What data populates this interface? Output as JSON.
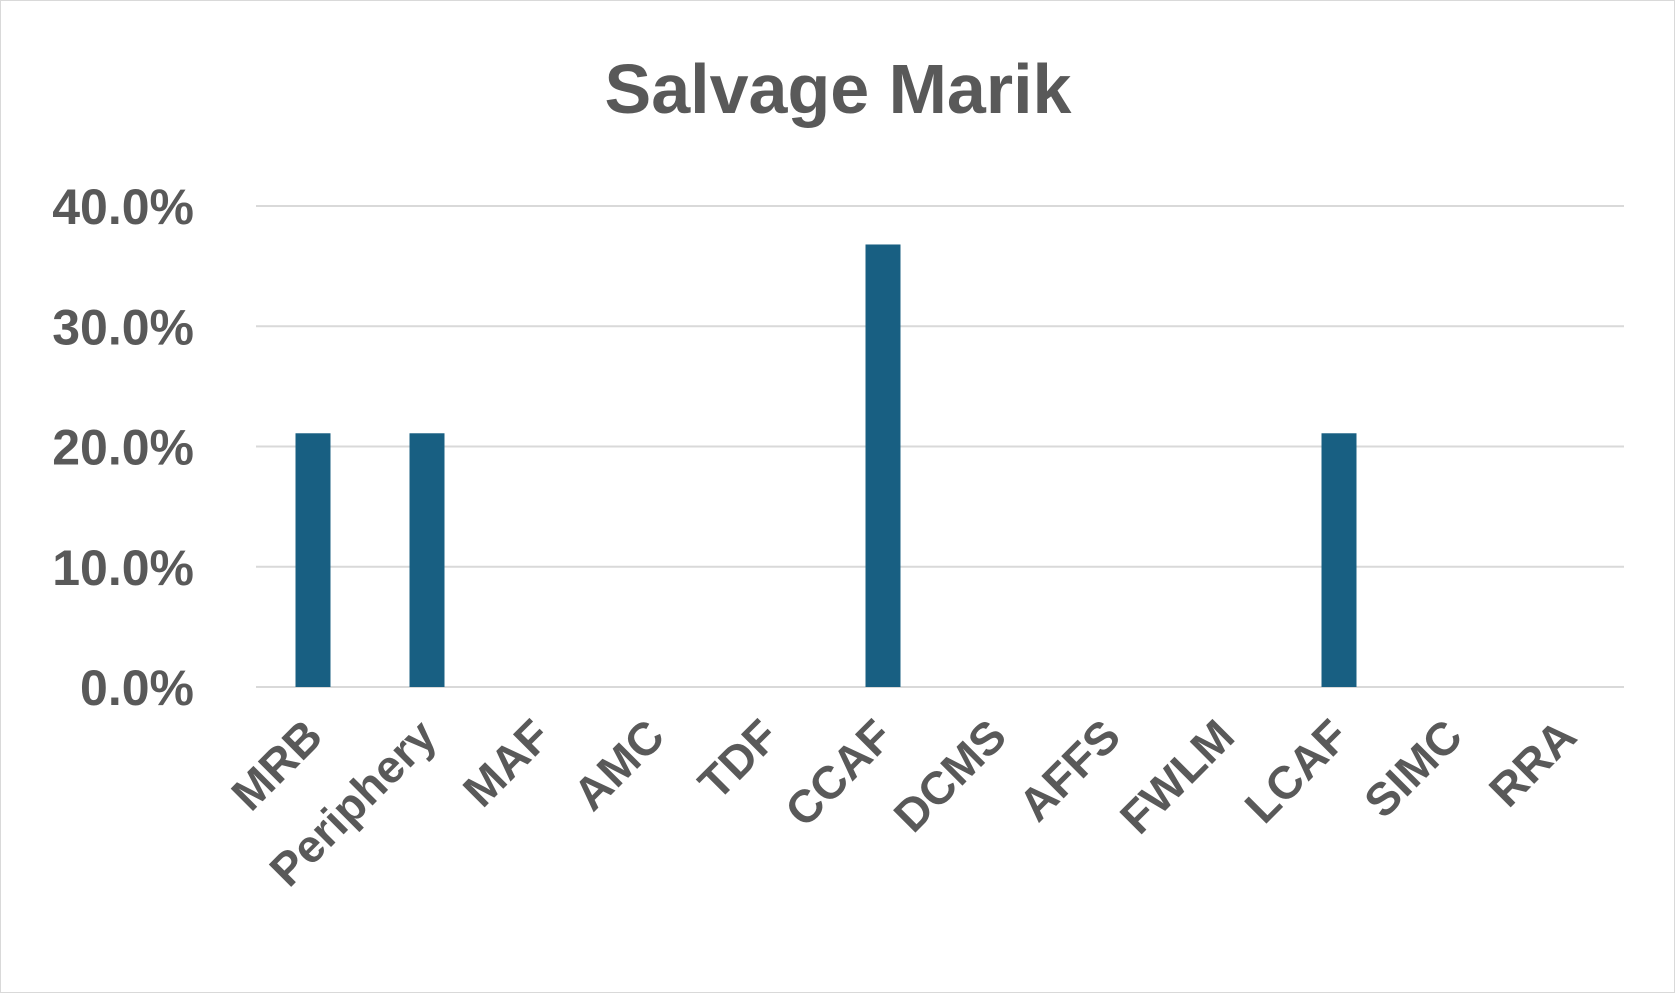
{
  "chart_data": {
    "type": "bar",
    "title": "Salvage Marik",
    "xlabel": "",
    "ylabel": "",
    "categories": [
      "MRB",
      "Periphery",
      "MAF",
      "AMC",
      "TDF",
      "CCAF",
      "DCMS",
      "AFFS",
      "FWLM",
      "LCAF",
      "SIMC",
      "RRA"
    ],
    "values": [
      21.1,
      21.1,
      0,
      0,
      0,
      36.8,
      0,
      0,
      0,
      21.1,
      0,
      0
    ],
    "ylim": [
      0,
      40
    ],
    "yticks": [
      0,
      10,
      20,
      30,
      40
    ],
    "ytick_labels": [
      "0.0%",
      "10.0%",
      "20.0%",
      "30.0%",
      "40.0%"
    ],
    "grid": true,
    "legend": "none",
    "bar_color": "#185f82"
  }
}
